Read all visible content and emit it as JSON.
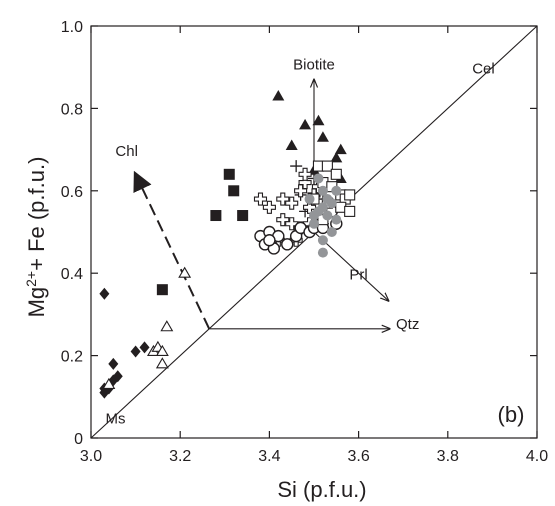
{
  "chart_data": {
    "type": "scatter",
    "title": "",
    "panel_label": "(b)",
    "xlabel": "Si (p.f.u.)",
    "ylabel_html": "Mg<sup>2+</sup>+ Fe (p.f.u.)",
    "ylabel_parts": {
      "base": "Mg",
      "sup": "2+",
      "rest": "+ Fe (p.f.u.)"
    },
    "xlim": [
      3.0,
      4.0
    ],
    "ylim": [
      0.0,
      1.0
    ],
    "x_ticks": [
      3.0,
      3.2,
      3.4,
      3.6,
      3.8,
      4.0
    ],
    "x_tick_labels": [
      "3.0",
      "3.2",
      "3.4",
      "3.6",
      "3.8",
      "4.0"
    ],
    "y_ticks": [
      0.0,
      0.2,
      0.4,
      0.6,
      0.8,
      1.0
    ],
    "y_tick_labels": [
      "0",
      "0.2",
      "0.4",
      "0.6",
      "0.8",
      "1.0"
    ],
    "grid": false,
    "legend": "none",
    "colors": {
      "black": "#231f20",
      "grey": "#939598"
    },
    "reference_lines": [
      {
        "from": [
          3.0,
          0.0
        ],
        "to": [
          4.0,
          1.0
        ],
        "style": "solid"
      }
    ],
    "vectors": [
      {
        "label": "Biotite",
        "from": [
          3.5,
          0.5
        ],
        "to": [
          3.5,
          0.87
        ],
        "style": "solid"
      },
      {
        "label": "Prl",
        "from": [
          3.5,
          0.5
        ],
        "to": [
          3.667,
          0.333
        ],
        "style": "solid"
      },
      {
        "label": "Qtz",
        "from": [
          3.265,
          0.265
        ],
        "to": [
          3.67,
          0.265
        ],
        "style": "solid"
      },
      {
        "label": "Chl",
        "from": [
          3.265,
          0.265
        ],
        "to": [
          3.1,
          0.64
        ],
        "style": "dashed"
      }
    ],
    "annotations": [
      {
        "text": "Biotite",
        "at": [
          3.5,
          0.895
        ]
      },
      {
        "text": "Cel",
        "at": [
          3.88,
          0.885
        ]
      },
      {
        "text": "Chl",
        "at": [
          3.08,
          0.685
        ]
      },
      {
        "text": "Prl",
        "at": [
          3.6,
          0.385
        ]
      },
      {
        "text": "Qtz",
        "at": [
          3.71,
          0.265
        ]
      },
      {
        "text": "Ms",
        "at": [
          3.055,
          0.035
        ]
      }
    ],
    "series": [
      {
        "marker": "filled-diamond",
        "values": [
          [
            3.03,
            0.35
          ],
          [
            3.03,
            0.11
          ],
          [
            3.03,
            0.12
          ],
          [
            3.04,
            0.12
          ],
          [
            3.05,
            0.14
          ],
          [
            3.06,
            0.15
          ],
          [
            3.05,
            0.18
          ],
          [
            3.1,
            0.21
          ],
          [
            3.12,
            0.22
          ]
        ]
      },
      {
        "marker": "open-triangle",
        "values": [
          [
            3.14,
            0.21
          ],
          [
            3.15,
            0.22
          ],
          [
            3.16,
            0.21
          ],
          [
            3.16,
            0.18
          ],
          [
            3.17,
            0.27
          ],
          [
            3.21,
            0.4
          ],
          [
            3.04,
            0.13
          ]
        ]
      },
      {
        "marker": "filled-square",
        "values": [
          [
            3.16,
            0.36
          ],
          [
            3.31,
            0.64
          ],
          [
            3.32,
            0.6
          ],
          [
            3.28,
            0.54
          ],
          [
            3.34,
            0.54
          ]
        ]
      },
      {
        "marker": "filled-triangle",
        "values": [
          [
            3.42,
            0.83
          ],
          [
            3.48,
            0.76
          ],
          [
            3.51,
            0.77
          ],
          [
            3.45,
            0.71
          ],
          [
            3.52,
            0.73
          ],
          [
            3.56,
            0.7
          ],
          [
            3.55,
            0.68
          ],
          [
            3.5,
            0.65
          ],
          [
            3.53,
            0.61
          ],
          [
            3.56,
            0.63
          ]
        ]
      },
      {
        "marker": "plus",
        "values": [
          [
            3.46,
            0.66
          ],
          [
            3.5,
            0.63
          ],
          [
            3.47,
            0.59
          ],
          [
            3.52,
            0.58
          ],
          [
            3.48,
            0.55
          ],
          [
            3.52,
            0.52
          ],
          [
            3.51,
            0.53
          ]
        ]
      },
      {
        "marker": "open-cross",
        "values": [
          [
            3.38,
            0.58
          ],
          [
            3.4,
            0.56
          ],
          [
            3.43,
            0.58
          ],
          [
            3.45,
            0.57
          ],
          [
            3.47,
            0.6
          ],
          [
            3.48,
            0.62
          ],
          [
            3.43,
            0.53
          ],
          [
            3.45,
            0.52
          ],
          [
            3.47,
            0.51
          ],
          [
            3.49,
            0.52
          ],
          [
            3.5,
            0.59
          ],
          [
            3.46,
            0.48
          ],
          [
            3.49,
            0.56
          ],
          [
            3.51,
            0.61
          ],
          [
            3.52,
            0.54
          ],
          [
            3.48,
            0.64
          ],
          [
            3.42,
            0.48
          ]
        ]
      },
      {
        "marker": "open-circle",
        "values": [
          [
            3.38,
            0.49
          ],
          [
            3.4,
            0.5
          ],
          [
            3.42,
            0.49
          ],
          [
            3.39,
            0.47
          ],
          [
            3.41,
            0.46
          ],
          [
            3.4,
            0.48
          ],
          [
            3.44,
            0.47
          ],
          [
            3.46,
            0.49
          ],
          [
            3.47,
            0.51
          ],
          [
            3.49,
            0.5
          ],
          [
            3.5,
            0.51
          ],
          [
            3.52,
            0.51
          ],
          [
            3.54,
            0.55
          ],
          [
            3.55,
            0.52
          ]
        ]
      },
      {
        "marker": "open-square",
        "values": [
          [
            3.51,
            0.66
          ],
          [
            3.53,
            0.66
          ],
          [
            3.55,
            0.64
          ],
          [
            3.52,
            0.62
          ],
          [
            3.54,
            0.61
          ],
          [
            3.56,
            0.59
          ],
          [
            3.57,
            0.58
          ],
          [
            3.58,
            0.59
          ],
          [
            3.56,
            0.56
          ],
          [
            3.58,
            0.55
          ],
          [
            3.5,
            0.58
          ],
          [
            3.52,
            0.53
          ],
          [
            3.53,
            0.57
          ]
        ]
      },
      {
        "marker": "grey-circle",
        "values": [
          [
            3.51,
            0.63
          ],
          [
            3.52,
            0.6
          ],
          [
            3.53,
            0.58
          ],
          [
            3.52,
            0.56
          ],
          [
            3.54,
            0.57
          ],
          [
            3.51,
            0.55
          ],
          [
            3.53,
            0.54
          ],
          [
            3.55,
            0.53
          ],
          [
            3.5,
            0.52
          ],
          [
            3.52,
            0.48
          ],
          [
            3.54,
            0.5
          ],
          [
            3.49,
            0.58
          ],
          [
            3.52,
            0.45
          ],
          [
            3.55,
            0.6
          ],
          [
            3.5,
            0.54
          ]
        ]
      }
    ]
  }
}
